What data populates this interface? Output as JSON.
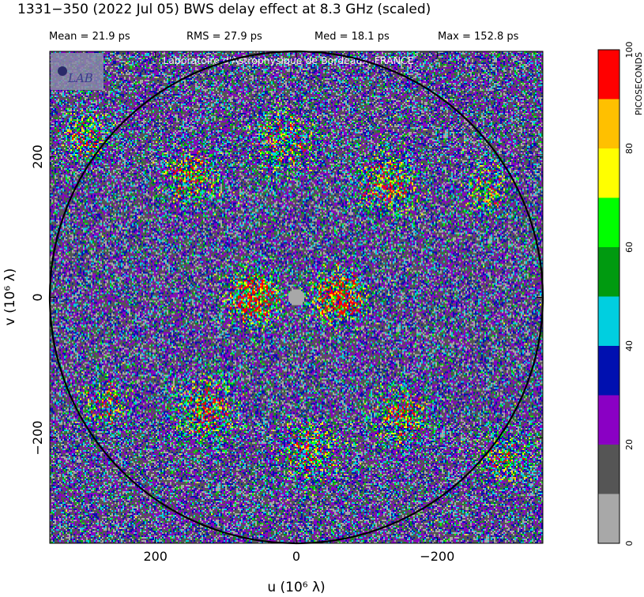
{
  "title": "1331−350  (2022 Jul 05)   BWS delay effect at  8.3 GHz (scaled)",
  "stats": {
    "mean": "Mean =   21.9 ps",
    "rms": "RMS =   27.9 ps",
    "med": "Med =   18.1 ps",
    "max": "Max =  152.8 ps"
  },
  "watermark": "Laboratoire d'Astrophysique de Bordeaux, FRANCE",
  "logo_text": "LAB",
  "chart_data": {
    "type": "heatmap",
    "xlabel": "u  (10⁶ λ)",
    "ylabel": "v  (10⁶ λ)",
    "x_ticks": [
      {
        "value": 200,
        "label": "200"
      },
      {
        "value": 0,
        "label": "0"
      },
      {
        "value": -200,
        "label": "−200"
      }
    ],
    "y_ticks": [
      {
        "value": 200,
        "label": "200"
      },
      {
        "value": 0,
        "label": "0"
      },
      {
        "value": -200,
        "label": "−200"
      }
    ],
    "xlim": [
      350,
      -350
    ],
    "ylim": [
      -350,
      350
    ],
    "circle_radius": 350,
    "colorbar": {
      "label": "PICOSECONDS",
      "range": [
        0,
        100
      ],
      "tick_labels": [
        "0",
        "20",
        "40",
        "60",
        "80",
        "100"
      ],
      "tick_values": [
        0,
        20,
        40,
        60,
        80,
        100
      ],
      "bins": [
        {
          "from": 0,
          "to": 10,
          "color": "#a8a8a8"
        },
        {
          "from": 10,
          "to": 20,
          "color": "#555555"
        },
        {
          "from": 20,
          "to": 30,
          "color": "#8a00c4"
        },
        {
          "from": 30,
          "to": 40,
          "color": "#0010b0"
        },
        {
          "from": 40,
          "to": 50,
          "color": "#00cfe0"
        },
        {
          "from": 50,
          "to": 60,
          "color": "#009a10"
        },
        {
          "from": 60,
          "to": 70,
          "color": "#00ff00"
        },
        {
          "from": 70,
          "to": 80,
          "color": "#ffff00"
        },
        {
          "from": 80,
          "to": 90,
          "color": "#ffc000"
        },
        {
          "from": 90,
          "to": 100,
          "color": "#ff0000"
        }
      ]
    }
  }
}
